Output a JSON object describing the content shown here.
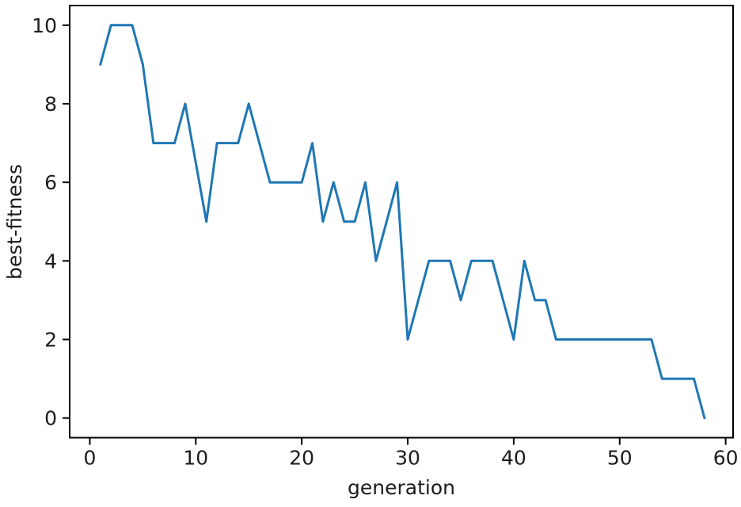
{
  "figure": {
    "background": "#ffffff"
  },
  "chart_data": {
    "type": "line",
    "title": "",
    "xlabel": "generation",
    "ylabel": "best-fitness",
    "x": [
      1,
      2,
      3,
      4,
      5,
      6,
      7,
      8,
      9,
      10,
      11,
      12,
      13,
      14,
      15,
      16,
      17,
      18,
      19,
      20,
      21,
      22,
      23,
      24,
      25,
      26,
      27,
      28,
      29,
      30,
      31,
      32,
      33,
      34,
      35,
      36,
      37,
      38,
      39,
      40,
      41,
      42,
      43,
      44,
      45,
      46,
      47,
      48,
      49,
      50,
      51,
      52,
      53,
      54,
      55,
      56,
      57,
      58
    ],
    "y": [
      9,
      10,
      10,
      10,
      9,
      7,
      7,
      7,
      8,
      6.5,
      5,
      7,
      7,
      7,
      8,
      7,
      6,
      6,
      6,
      6,
      7,
      5,
      6,
      5,
      5,
      6,
      4,
      5,
      6,
      2,
      3,
      4,
      4,
      4,
      3,
      4,
      4,
      4,
      3,
      2,
      4,
      3,
      3,
      2,
      2,
      2,
      2,
      2,
      2,
      2,
      2,
      2,
      2,
      1,
      1,
      1,
      1,
      0
    ],
    "xlim": [
      -1.9,
      60.7
    ],
    "ylim": [
      -0.5,
      10.5
    ],
    "xticks": [
      0,
      10,
      20,
      30,
      40,
      50,
      60
    ],
    "yticks": [
      0,
      2,
      4,
      6,
      8,
      10
    ],
    "grid": false,
    "legend": "none",
    "line_color": "#1f77b4",
    "axis_color": "#000000",
    "text_color": "#1c1c1c"
  }
}
